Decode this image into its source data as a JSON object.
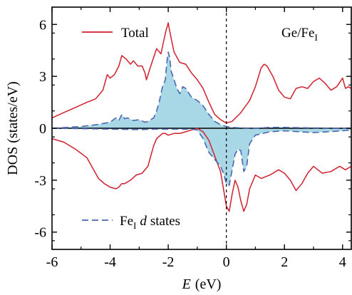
{
  "chart_data": {
    "type": "line",
    "annotation": "Ge/Fe",
    "annotation_sub": "I",
    "xlabel_var": "E",
    "xlabel_unit": "(eV)",
    "ylabel": "DOS (states/eV)",
    "xlim": [
      -6,
      4.3
    ],
    "ylim": [
      -7,
      7
    ],
    "xticks": [
      -6,
      -4,
      -2,
      0,
      2,
      4
    ],
    "yticks": [
      -6,
      -3,
      0,
      3,
      6
    ],
    "fermi_level": 0,
    "legend": {
      "total": "Total",
      "fe_prefix": "Fe",
      "fe_sub": "I",
      "fe_d": "d",
      "fe_suffix": "states"
    },
    "colors": {
      "total": "#d0202e",
      "fe_line": "#4a66b0",
      "fe_fill": "#a8d8e6",
      "axis": "#000000"
    },
    "series": [
      {
        "name": "Total",
        "role": "spin-up",
        "x": [
          -6,
          -5.6,
          -5.2,
          -4.8,
          -4.5,
          -4.25,
          -4.1,
          -4.0,
          -3.85,
          -3.7,
          -3.6,
          -3.45,
          -3.3,
          -3.2,
          -3.05,
          -2.9,
          -2.8,
          -2.75,
          -2.6,
          -2.5,
          -2.4,
          -2.25,
          -2.15,
          -2.07,
          -2.03,
          -2.0,
          -1.97,
          -1.9,
          -1.8,
          -1.6,
          -1.4,
          -1.2,
          -1.0,
          -0.8,
          -0.6,
          -0.4,
          -0.2,
          0.0,
          0.2,
          0.5,
          0.8,
          1.0,
          1.2,
          1.3,
          1.4,
          1.6,
          1.8,
          2.0,
          2.2,
          2.4,
          2.6,
          2.8,
          3.0,
          3.2,
          3.4,
          3.6,
          3.8,
          4.0,
          4.1,
          4.2,
          4.3
        ],
        "y": [
          0.6,
          0.9,
          1.2,
          1.5,
          1.7,
          2.2,
          3.1,
          2.9,
          3.1,
          3.6,
          4.2,
          4.0,
          3.7,
          3.9,
          3.6,
          3.6,
          3.2,
          2.8,
          3.6,
          4.1,
          4.6,
          4.3,
          5.1,
          5.7,
          5.9,
          6.1,
          5.8,
          5.2,
          4.4,
          3.8,
          3.7,
          3.2,
          2.8,
          2.3,
          1.5,
          0.8,
          0.5,
          0.3,
          0.4,
          0.9,
          1.6,
          2.4,
          3.5,
          3.7,
          3.6,
          3.0,
          2.2,
          1.8,
          1.7,
          2.3,
          2.4,
          2.3,
          2.7,
          2.9,
          2.6,
          2.2,
          2.4,
          2.9,
          2.3,
          2.4,
          2.3
        ]
      },
      {
        "name": "Total",
        "role": "spin-down",
        "x": [
          -6,
          -5.6,
          -5.2,
          -4.8,
          -4.6,
          -4.4,
          -4.2,
          -4.0,
          -3.8,
          -3.7,
          -3.6,
          -3.5,
          -3.3,
          -3.1,
          -2.9,
          -2.7,
          -2.6,
          -2.5,
          -2.4,
          -2.2,
          -2.1,
          -2.0,
          -1.8,
          -1.6,
          -1.4,
          -1.2,
          -1.0,
          -0.8,
          -0.6,
          -0.4,
          -0.2,
          -0.1,
          0.0,
          0.1,
          0.2,
          0.3,
          0.4,
          0.5,
          0.6,
          0.7,
          0.8,
          1.0,
          1.2,
          1.5,
          1.8,
          2.0,
          2.2,
          2.4,
          2.6,
          2.8,
          3.0,
          3.3,
          3.6,
          3.9,
          4.1,
          4.3
        ],
        "y": [
          -0.6,
          -0.8,
          -1.2,
          -1.7,
          -2.3,
          -2.9,
          -3.2,
          -3.4,
          -3.5,
          -3.4,
          -3.2,
          -3.2,
          -3.0,
          -2.7,
          -2.6,
          -2.2,
          -1.6,
          -1.0,
          -0.6,
          -0.3,
          -0.3,
          -0.4,
          -0.3,
          -0.3,
          -0.2,
          -0.1,
          0.0,
          -0.2,
          -0.7,
          -1.6,
          -2.5,
          -3.5,
          -4.5,
          -4.8,
          -3.8,
          -3.0,
          -3.4,
          -4.2,
          -4.8,
          -4.4,
          -3.5,
          -2.7,
          -2.9,
          -2.7,
          -2.4,
          -2.6,
          -3.0,
          -3.6,
          -3.2,
          -2.6,
          -2.2,
          -2.6,
          -2.5,
          -2.2,
          -2.4,
          -2.2
        ]
      },
      {
        "name": "Fe d states",
        "role": "spin-up",
        "x": [
          -6,
          -5.0,
          -4.5,
          -4.0,
          -3.8,
          -3.7,
          -3.6,
          -3.5,
          -3.4,
          -3.2,
          -3.0,
          -2.8,
          -2.7,
          -2.5,
          -2.4,
          -2.3,
          -2.2,
          -2.1,
          -2.05,
          -2.0,
          -1.95,
          -1.9,
          -1.8,
          -1.7,
          -1.6,
          -1.5,
          -1.4,
          -1.2,
          -1.0,
          -0.8,
          -0.6,
          -0.4,
          -0.2,
          0.0,
          0.2,
          0.5,
          1.0,
          1.5,
          2.0,
          3.0,
          4.0,
          4.3
        ],
        "y": [
          0.0,
          0.1,
          0.2,
          0.35,
          0.6,
          0.45,
          0.8,
          0.55,
          0.6,
          0.45,
          0.5,
          0.35,
          0.4,
          0.6,
          1.0,
          1.6,
          2.4,
          2.8,
          3.8,
          4.4,
          4.1,
          3.3,
          2.8,
          2.3,
          2.0,
          2.4,
          2.3,
          1.8,
          1.6,
          1.3,
          0.8,
          0.4,
          0.2,
          0.1,
          0.05,
          0.02,
          0.0,
          0.05,
          0.05,
          0.02,
          0.0,
          0.0
        ]
      },
      {
        "name": "Fe d states",
        "role": "spin-down",
        "x": [
          -6,
          -5.0,
          -4.0,
          -3.0,
          -2.5,
          -2.0,
          -1.5,
          -1.2,
          -1.0,
          -0.8,
          -0.6,
          -0.4,
          -0.2,
          -0.1,
          0.0,
          0.1,
          0.2,
          0.3,
          0.4,
          0.5,
          0.6,
          0.7,
          0.8,
          1.0,
          1.5,
          2.0,
          3.0,
          4.0,
          4.3
        ],
        "y": [
          0.0,
          -0.02,
          -0.05,
          -0.08,
          -0.05,
          -0.05,
          -0.05,
          -0.05,
          -0.1,
          -0.6,
          -1.4,
          -1.8,
          -2.2,
          -2.6,
          -3.2,
          -3.3,
          -2.4,
          -1.5,
          -1.2,
          -1.3,
          -2.5,
          -2.2,
          -0.9,
          -0.4,
          -0.2,
          -0.15,
          -0.25,
          -0.15,
          -0.1
        ]
      }
    ]
  }
}
